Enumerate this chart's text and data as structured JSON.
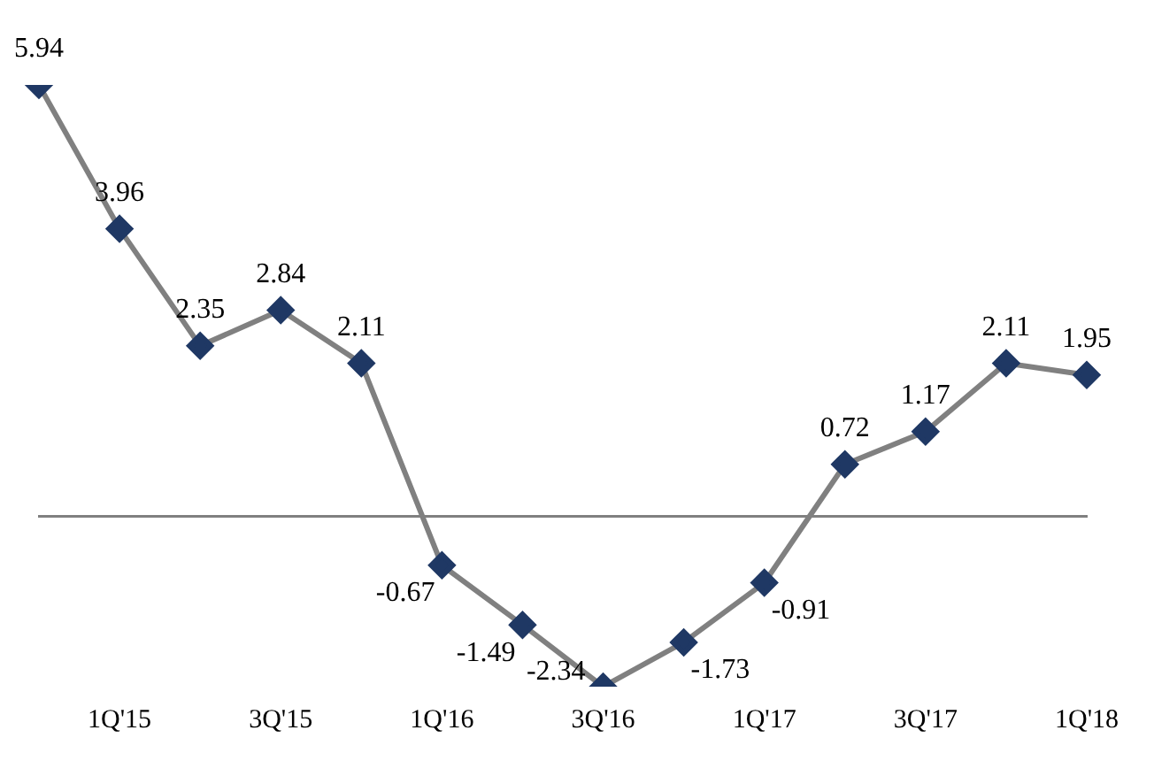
{
  "chart_data": {
    "type": "line",
    "categories": [
      null,
      "1Q'15",
      null,
      "3Q'15",
      null,
      "1Q'16",
      null,
      "3Q'16",
      null,
      "1Q'17",
      null,
      "3Q'17",
      null,
      "1Q'18"
    ],
    "series": [
      {
        "color": "#808080",
        "colors": [
          "#1f3864",
          "#1f3864",
          "#1f3864",
          "#1f3864",
          "#1f3864",
          "#1f3864",
          "#1f3864",
          "#1f3864",
          "#1f3864",
          "#1f3864",
          "#1f3864",
          "#1f3864",
          "#1f3864",
          "#1f3864"
        ],
        "values": [
          5.94,
          3.96,
          2.35,
          2.84,
          2.11,
          -0.67,
          -1.49,
          -2.34,
          -1.73,
          -0.91,
          0.72,
          1.17,
          2.11,
          1.95
        ]
      }
    ],
    "data_labels": true,
    "marker": "diamond",
    "line_style": "solid",
    "grid": false,
    "legend": false
  }
}
